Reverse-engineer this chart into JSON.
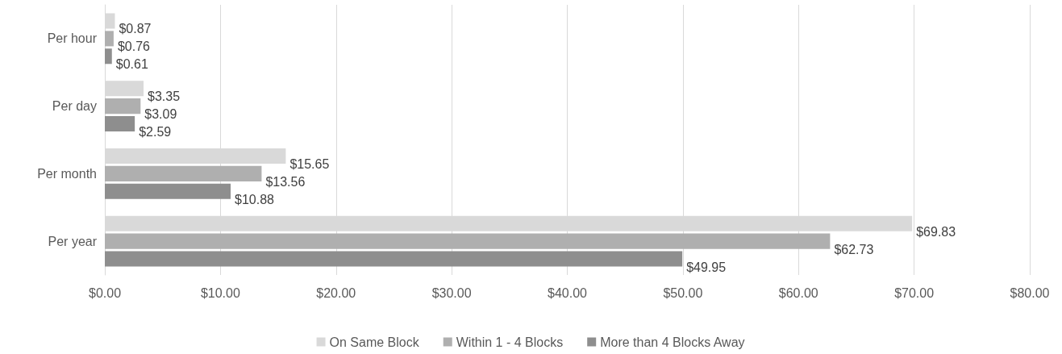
{
  "chart_data": {
    "type": "bar",
    "orientation": "horizontal",
    "categories": [
      "Per hour",
      "Per day",
      "Per month",
      "Per year"
    ],
    "series": [
      {
        "name": "On Same Block",
        "color": "#d9d9d9",
        "values": [
          0.87,
          3.35,
          15.65,
          69.83
        ],
        "value_labels": [
          "$0.87",
          "$3.35",
          "$15.65",
          "$69.83"
        ]
      },
      {
        "name": "Within 1 - 4 Blocks",
        "color": "#afafaf",
        "values": [
          0.76,
          3.09,
          13.56,
          62.73
        ],
        "value_labels": [
          "$0.76",
          "$3.09",
          "$13.56",
          "$62.73"
        ]
      },
      {
        "name": "More than 4 Blocks Away",
        "color": "#8e8e8e",
        "values": [
          0.61,
          2.59,
          10.88,
          49.95
        ],
        "value_labels": [
          "$0.61",
          "$2.59",
          "$10.88",
          "$49.95"
        ]
      }
    ],
    "xlim": [
      0,
      80
    ],
    "xticks": [
      {
        "value": 0,
        "label": "$0.00"
      },
      {
        "value": 10,
        "label": "$10.00"
      },
      {
        "value": 20,
        "label": "$20.00"
      },
      {
        "value": 30,
        "label": "$30.00"
      },
      {
        "value": 40,
        "label": "$40.00"
      },
      {
        "value": 50,
        "label": "$50.00"
      },
      {
        "value": 60,
        "label": "$60.00"
      },
      {
        "value": 70,
        "label": "$70.00"
      },
      {
        "value": 80,
        "label": "$80.00"
      }
    ],
    "grid": "x",
    "legend": "bottom"
  }
}
